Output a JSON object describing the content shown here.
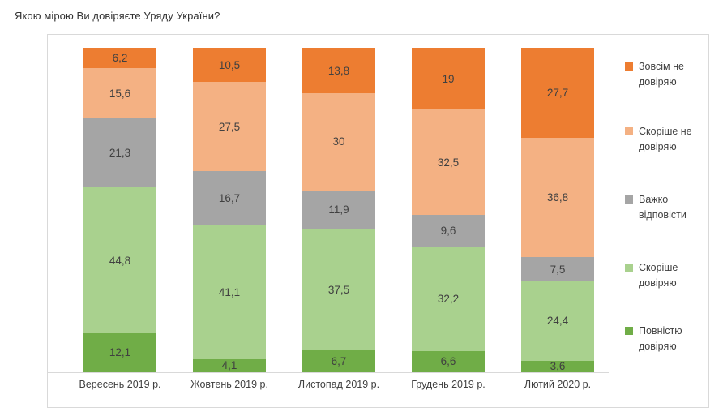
{
  "page": {
    "title": "Якою мірою Ви довіряєте Уряду України?"
  },
  "chart_data": {
    "type": "bar",
    "variant": "stacked-100-percent-column",
    "title": "Якою мірою Ви довіряєте Уряду України?",
    "categories": [
      "Вересень 2019 р.",
      "Жовтень 2019 р.",
      "Листопад 2019 р.",
      "Грудень 2019 р.",
      "Лютий 2020 р."
    ],
    "series": [
      {
        "name": "Повністю довіряю",
        "color": "#70AD47",
        "values": [
          12.1,
          4.1,
          6.7,
          6.6,
          3.6
        ],
        "labels": [
          "12,1",
          "4,1",
          "6,7",
          "6,6",
          "3,6"
        ]
      },
      {
        "name": "Скоріше довіряю",
        "color": "#A9D18E",
        "values": [
          44.8,
          41.1,
          37.5,
          32.2,
          24.4
        ],
        "labels": [
          "44,8",
          "41,1",
          "37,5",
          "32,2",
          "24,4"
        ]
      },
      {
        "name": "Важко відповісти",
        "color": "#A5A5A5",
        "values": [
          21.3,
          16.7,
          11.9,
          9.6,
          7.5
        ],
        "labels": [
          "21,3",
          "16,7",
          "11,9",
          "9,6",
          "7,5"
        ]
      },
      {
        "name": "Скоріше не довіряю",
        "color": "#F4B183",
        "values": [
          15.6,
          27.5,
          30,
          32.5,
          36.8
        ],
        "labels": [
          "15,6",
          "27,5",
          "30",
          "32,5",
          "36,8"
        ]
      },
      {
        "name": "Зовсім не довіряю",
        "color": "#ED7D31",
        "values": [
          6.2,
          10.5,
          13.8,
          19,
          27.7
        ],
        "labels": [
          "6,2",
          "10,5",
          "13,8",
          "19",
          "27,7"
        ]
      }
    ],
    "stack_order_bottom_to_top": [
      "Повністю довіряю",
      "Скоріше довіряю",
      "Важко відповісти",
      "Скоріше не довіряю",
      "Зовсім не довіряю"
    ],
    "legend_order_top_to_bottom": [
      "Зовсім не довіряю",
      "Скоріше не довіряю",
      "Важко відповісти",
      "Скоріше довіряю",
      "Повністю довіряю"
    ],
    "legend_position": "right",
    "ylim": [
      0,
      100
    ],
    "grid": false,
    "value_label_color": "#404040",
    "axis_line_color": "#D9D9D9",
    "frame_border_color": "#D9D9D9"
  }
}
